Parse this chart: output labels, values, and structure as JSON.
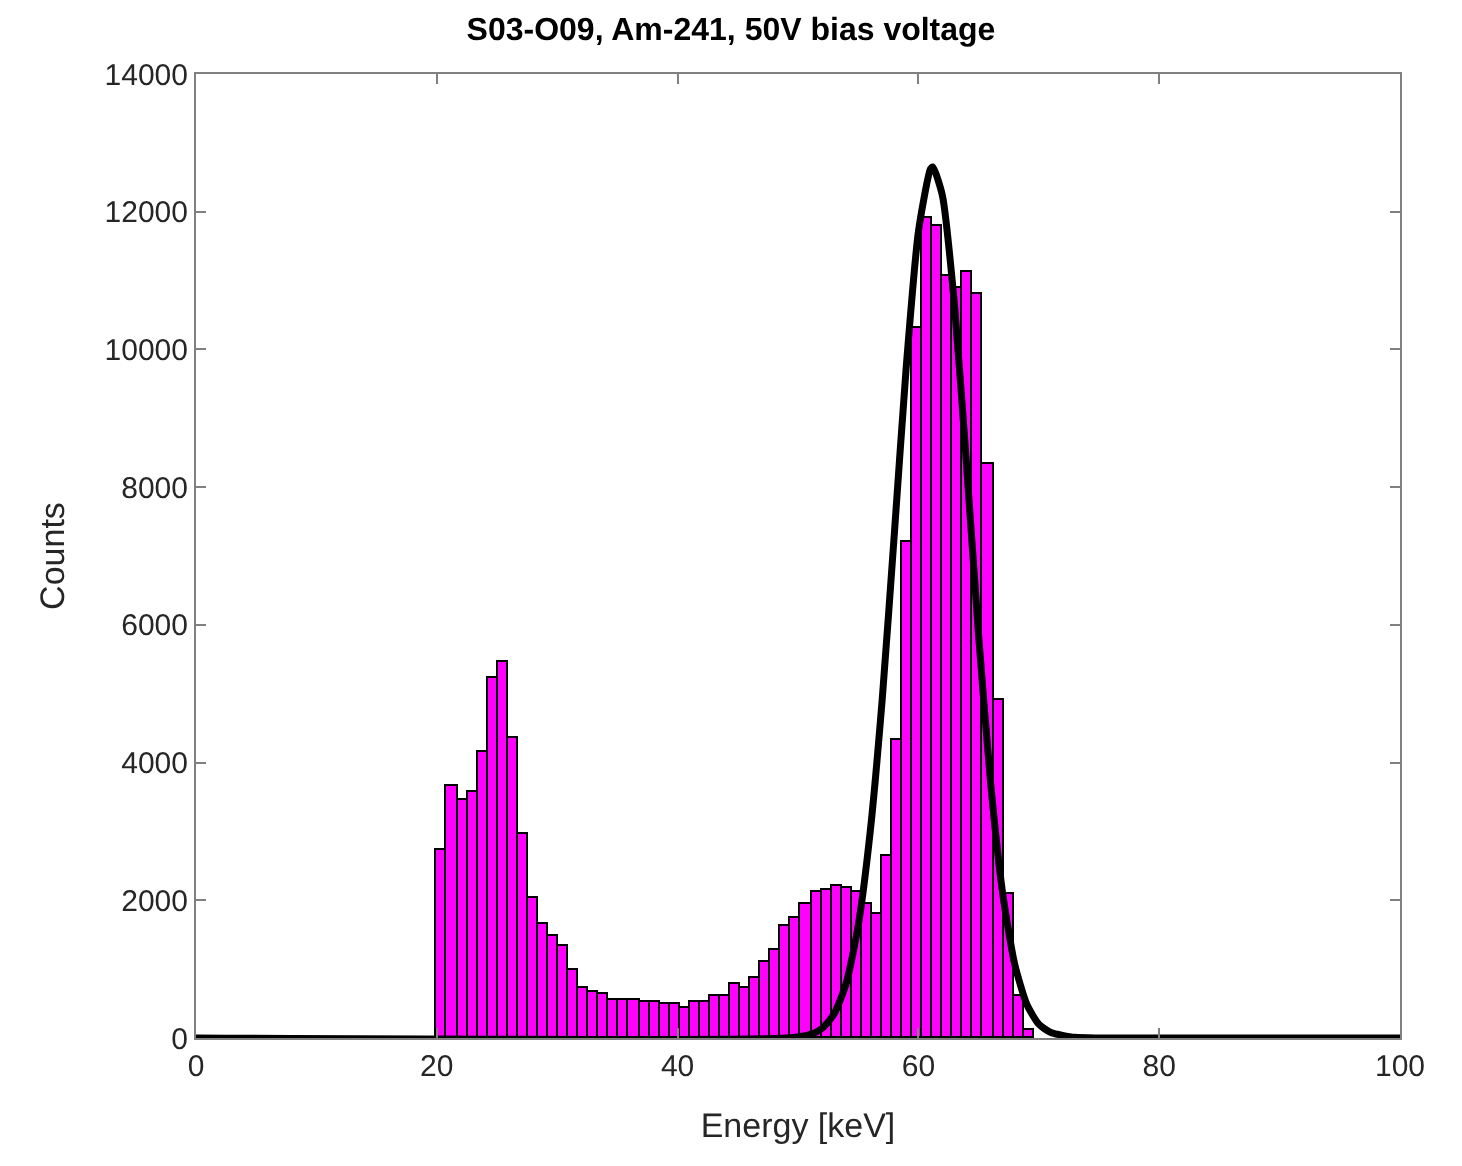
{
  "chart_data": {
    "type": "histogram",
    "title": "S03-O09, Am-241, 50V bias voltage",
    "xlabel": "Energy [keV]",
    "ylabel": "Counts",
    "bins": [
      20,
      20.84,
      21.68,
      22.52,
      23.36,
      24.2,
      25.04,
      25.88,
      26.72,
      27.56,
      28.4,
      29.24,
      30.08,
      30.92,
      31.76,
      32.6,
      33.44,
      34.28,
      35.12,
      35.96,
      36.8,
      37.64,
      38.48,
      39.32,
      40.16,
      41,
      41.84,
      42.68,
      43.52,
      44.36,
      45.2,
      46.04,
      46.88,
      47.72,
      48.56,
      49.4,
      50.24,
      51.08,
      51.92,
      52.76,
      53.6,
      54.44,
      55.28,
      56.12,
      56.96,
      57.8,
      58.64,
      59.48,
      60.32,
      61.16,
      62,
      62.84,
      63.68,
      64.52,
      65.36,
      66.2,
      67.04,
      67.88,
      68.72,
      69.56
    ],
    "values": [
      2730,
      3650,
      3460,
      3570,
      4150,
      5220,
      5470,
      4360,
      2970,
      2020,
      1650,
      1470,
      1350,
      980,
      730,
      670,
      630,
      560,
      560,
      540,
      530,
      510,
      490,
      490,
      450,
      530,
      530,
      600,
      600,
      770,
      740,
      880,
      1100,
      1280,
      1620,
      1740,
      1960,
      2130,
      2150,
      2220,
      2170,
      2130,
      1960,
      1810,
      2630,
      4330,
      7210,
      10310,
      11900,
      11780,
      11060,
      10890,
      11120,
      10810,
      8340,
      4910,
      2080,
      600,
      120
    ],
    "color": "#ff00ff",
    "series": [
      {
        "type": "line",
        "color": "#000000",
        "x": [
          0,
          49,
          51,
          52,
          53,
          54,
          55,
          56,
          57,
          58,
          59,
          60,
          61,
          61.2,
          62,
          63,
          64,
          65,
          66,
          67,
          68,
          69,
          70,
          71,
          73,
          75,
          100
        ],
        "values": [
          0,
          0,
          50,
          140,
          350,
          790,
          1630,
          3000,
          4930,
          7320,
          9770,
          11710,
          12620,
          12650,
          12230,
          10640,
          8320,
          5850,
          3700,
          2100,
          1070,
          490,
          200,
          80,
          10,
          0,
          0
        ]
      }
    ],
    "xlim": [
      0,
      100
    ],
    "xticks": [
      0,
      20,
      40,
      60,
      80,
      100
    ],
    "ylim": [
      0,
      14000
    ],
    "yticks": [
      0,
      2000,
      4000,
      6000,
      8000,
      10000,
      12000,
      14000
    ],
    "tick_labels": "xy"
  }
}
